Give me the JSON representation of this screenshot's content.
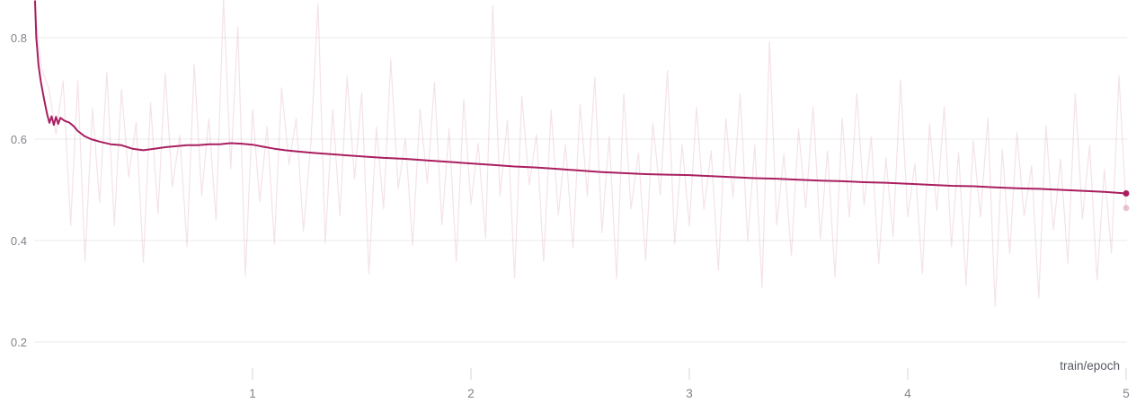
{
  "chart_data": {
    "type": "line",
    "title": "",
    "xlabel": "train/epoch",
    "ylabel": "",
    "xlim": [
      0,
      5
    ],
    "ylim": [
      0.175,
      0.874
    ],
    "grid": "horizontal",
    "legend": "none",
    "x_ticks": [
      1,
      2,
      3,
      4,
      5
    ],
    "x_tick_labels": [
      "1",
      "2",
      "3",
      "4",
      "5"
    ],
    "y_ticks": [
      0.8,
      0.6,
      0.4,
      0.2
    ],
    "y_tick_labels": [
      "0.8",
      "0.6",
      "0.4",
      "0.2"
    ],
    "colors": {
      "line": "#a91e60",
      "grid": "#ebebee",
      "tick": "#e3e3e8",
      "tick_label": "#82828c",
      "axis_title": "#565a63",
      "background": "#ffffff"
    },
    "series": [
      {
        "name": "raw",
        "role": "unsmoothed-values",
        "opacity": 0.13,
        "width": 1.2,
        "end_dot": {
          "x": 5,
          "y": 0.464
        },
        "x": [
          0,
          0.033,
          0.067,
          0.1,
          0.133,
          0.167,
          0.2,
          0.233,
          0.267,
          0.3,
          0.333,
          0.367,
          0.4,
          0.433,
          0.467,
          0.5,
          0.533,
          0.567,
          0.6,
          0.633,
          0.667,
          0.7,
          0.733,
          0.767,
          0.8,
          0.833,
          0.867,
          0.9,
          0.933,
          0.967,
          1,
          1.033,
          1.067,
          1.1,
          1.133,
          1.167,
          1.2,
          1.233,
          1.267,
          1.3,
          1.333,
          1.367,
          1.4,
          1.433,
          1.467,
          1.5,
          1.533,
          1.567,
          1.6,
          1.633,
          1.667,
          1.7,
          1.733,
          1.767,
          1.8,
          1.833,
          1.867,
          1.9,
          1.933,
          1.967,
          2,
          2.033,
          2.067,
          2.1,
          2.133,
          2.167,
          2.2,
          2.233,
          2.267,
          2.3,
          2.333,
          2.367,
          2.4,
          2.433,
          2.467,
          2.5,
          2.533,
          2.567,
          2.6,
          2.633,
          2.667,
          2.7,
          2.733,
          2.767,
          2.8,
          2.833,
          2.867,
          2.9,
          2.933,
          2.967,
          3,
          3.033,
          3.067,
          3.1,
          3.133,
          3.167,
          3.2,
          3.233,
          3.267,
          3.3,
          3.333,
          3.367,
          3.4,
          3.433,
          3.467,
          3.5,
          3.533,
          3.567,
          3.6,
          3.633,
          3.667,
          3.7,
          3.733,
          3.767,
          3.8,
          3.833,
          3.867,
          3.9,
          3.933,
          3.967,
          4,
          4.033,
          4.067,
          4.1,
          4.133,
          4.167,
          4.2,
          4.233,
          4.267,
          4.3,
          4.333,
          4.367,
          4.4,
          4.433,
          4.467,
          4.5,
          4.533,
          4.567,
          4.6,
          4.633,
          4.667,
          4.7,
          4.733,
          4.767,
          4.8,
          4.833,
          4.867,
          4.9,
          4.933,
          4.967,
          5
        ],
        "values": [
          0.87,
          0.74,
          0.7,
          0.61,
          0.715,
          0.43,
          0.715,
          0.36,
          0.66,
          0.475,
          0.732,
          0.43,
          0.698,
          0.525,
          0.633,
          0.357,
          0.672,
          0.453,
          0.73,
          0.506,
          0.607,
          0.388,
          0.748,
          0.489,
          0.64,
          0.44,
          0.876,
          0.542,
          0.821,
          0.33,
          0.659,
          0.477,
          0.625,
          0.393,
          0.701,
          0.55,
          0.641,
          0.419,
          0.593,
          0.867,
          0.395,
          0.659,
          0.449,
          0.723,
          0.522,
          0.691,
          0.335,
          0.624,
          0.463,
          0.757,
          0.502,
          0.601,
          0.39,
          0.659,
          0.513,
          0.712,
          0.431,
          0.62,
          0.359,
          0.678,
          0.472,
          0.591,
          0.405,
          0.864,
          0.488,
          0.637,
          0.326,
          0.685,
          0.51,
          0.609,
          0.358,
          0.657,
          0.451,
          0.59,
          0.385,
          0.668,
          0.488,
          0.722,
          0.416,
          0.605,
          0.325,
          0.689,
          0.463,
          0.572,
          0.361,
          0.631,
          0.49,
          0.735,
          0.394,
          0.589,
          0.429,
          0.663,
          0.462,
          0.577,
          0.341,
          0.64,
          0.485,
          0.689,
          0.399,
          0.588,
          0.307,
          0.792,
          0.431,
          0.571,
          0.37,
          0.62,
          0.464,
          0.664,
          0.403,
          0.577,
          0.327,
          0.641,
          0.446,
          0.69,
          0.47,
          0.604,
          0.354,
          0.563,
          0.408,
          0.717,
          0.447,
          0.551,
          0.335,
          0.63,
          0.459,
          0.664,
          0.388,
          0.573,
          0.312,
          0.597,
          0.446,
          0.641,
          0.27,
          0.58,
          0.374,
          0.613,
          0.448,
          0.547,
          0.287,
          0.626,
          0.421,
          0.56,
          0.355,
          0.689,
          0.443,
          0.588,
          0.322,
          0.54,
          0.375,
          0.725,
          0.464
        ]
      },
      {
        "name": "smoothed",
        "role": "smoothed-values",
        "opacity": 1,
        "width": 2,
        "end_dot": {
          "x": 5,
          "y": 0.493
        },
        "x": [
          0.004,
          0.01,
          0.02,
          0.03,
          0.045,
          0.06,
          0.07,
          0.08,
          0.09,
          0.1,
          0.11,
          0.12,
          0.14,
          0.16,
          0.18,
          0.2,
          0.23,
          0.26,
          0.3,
          0.35,
          0.4,
          0.45,
          0.5,
          0.55,
          0.6,
          0.65,
          0.7,
          0.75,
          0.8,
          0.85,
          0.9,
          0.95,
          1,
          1.05,
          1.1,
          1.15,
          1.2,
          1.25,
          1.3,
          1.4,
          1.5,
          1.6,
          1.7,
          1.8,
          1.9,
          2,
          2.1,
          2.2,
          2.3,
          2.4,
          2.5,
          2.6,
          2.7,
          2.8,
          2.9,
          3,
          3.1,
          3.2,
          3.3,
          3.4,
          3.5,
          3.6,
          3.7,
          3.8,
          3.9,
          4,
          4.1,
          4.2,
          4.3,
          4.4,
          4.5,
          4.6,
          4.7,
          4.8,
          4.9,
          5
        ],
        "values": [
          0.872,
          0.8,
          0.745,
          0.715,
          0.68,
          0.648,
          0.632,
          0.645,
          0.628,
          0.644,
          0.63,
          0.642,
          0.636,
          0.633,
          0.626,
          0.616,
          0.606,
          0.6,
          0.595,
          0.59,
          0.588,
          0.581,
          0.578,
          0.581,
          0.584,
          0.586,
          0.588,
          0.588,
          0.59,
          0.59,
          0.592,
          0.591,
          0.589,
          0.585,
          0.581,
          0.578,
          0.576,
          0.574,
          0.572,
          0.569,
          0.566,
          0.563,
          0.561,
          0.558,
          0.555,
          0.552,
          0.549,
          0.546,
          0.544,
          0.541,
          0.538,
          0.535,
          0.533,
          0.531,
          0.53,
          0.529,
          0.527,
          0.525,
          0.523,
          0.522,
          0.52,
          0.518,
          0.517,
          0.515,
          0.514,
          0.512,
          0.51,
          0.508,
          0.507,
          0.505,
          0.503,
          0.502,
          0.5,
          0.498,
          0.496,
          0.493
        ]
      }
    ]
  }
}
